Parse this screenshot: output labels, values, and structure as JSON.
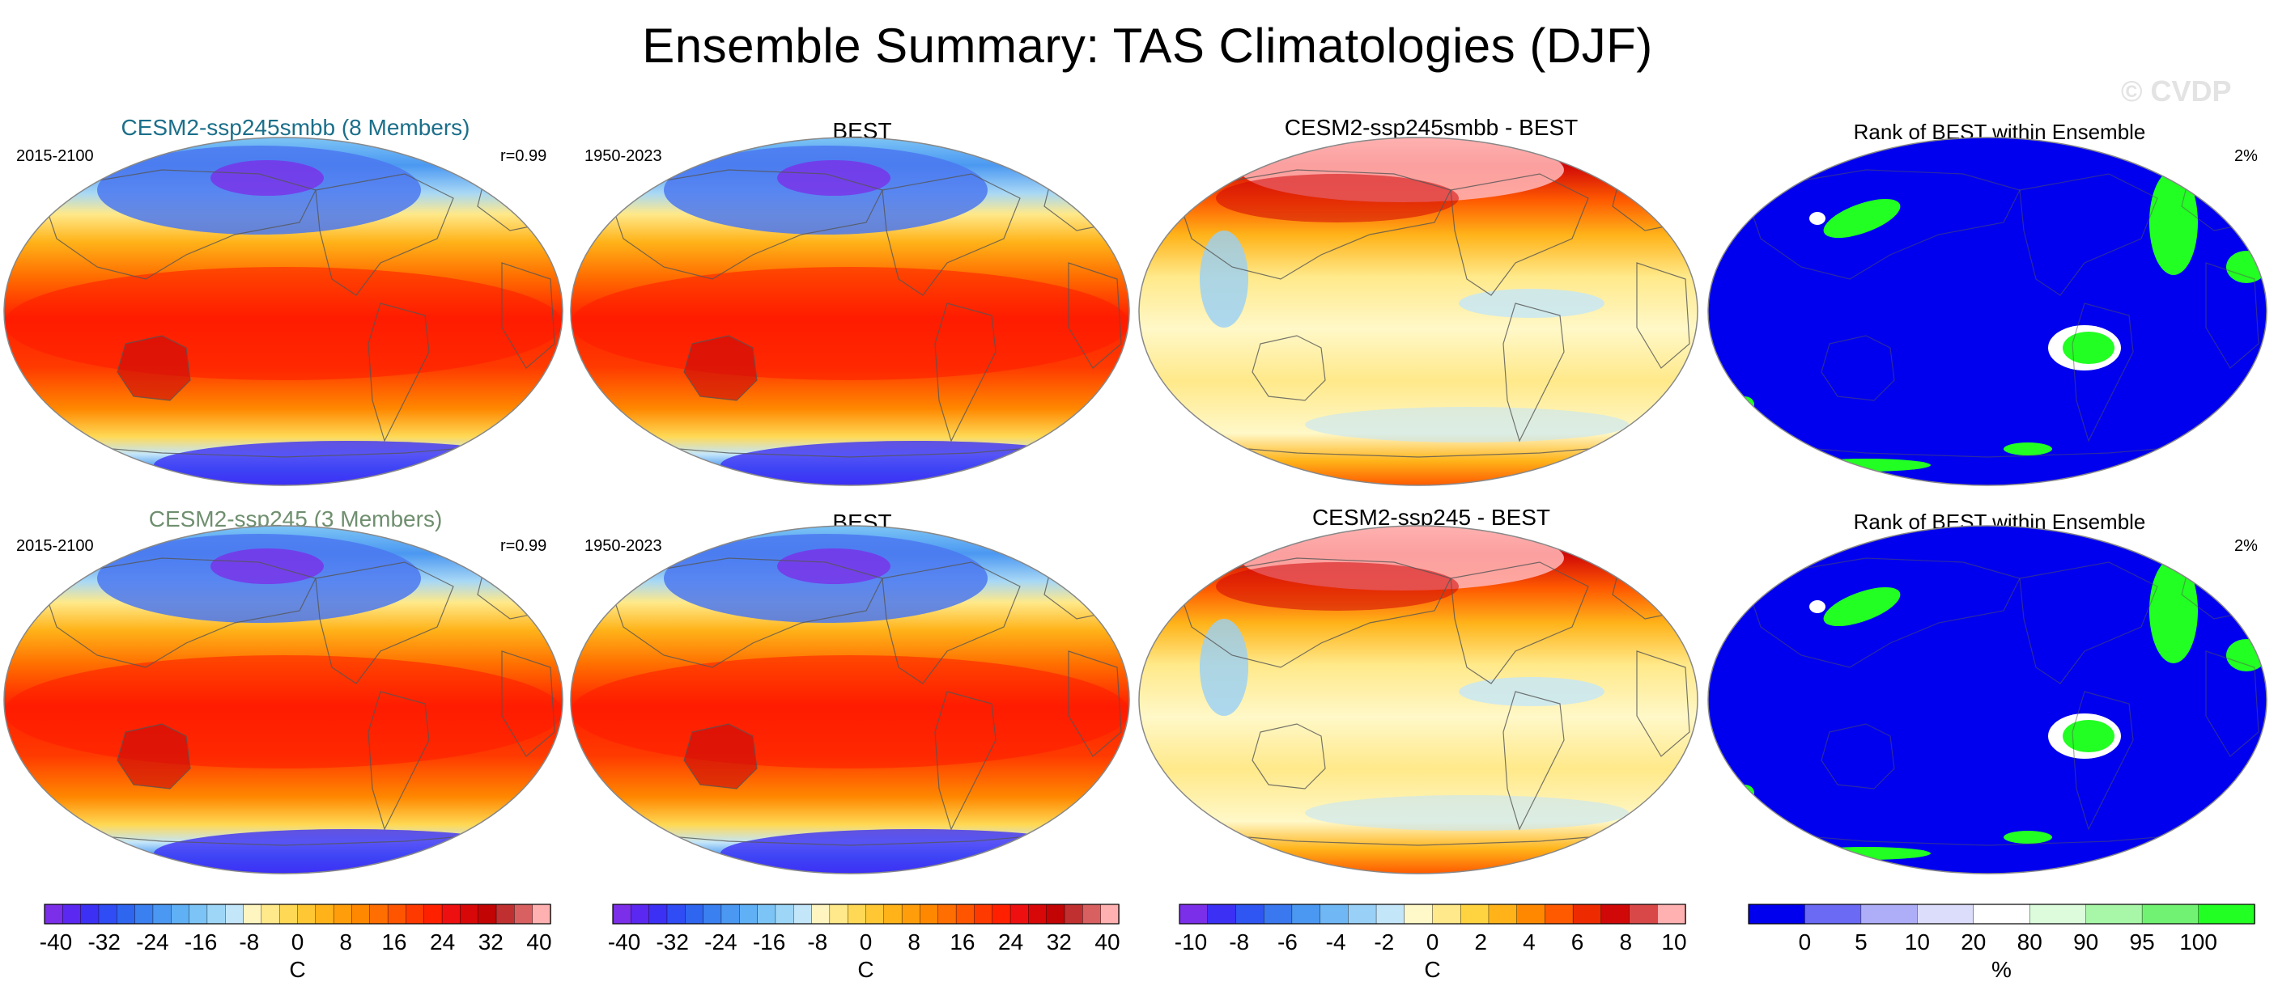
{
  "title": "Ensemble Summary: TAS Climatologies (DJF)",
  "watermark": "© CVDP",
  "colors": {
    "row1_title": "#1b6f8a",
    "row2_title": "#6f8f6f",
    "rank_ocean": "#0000ee",
    "rank_high": "#22ff22",
    "coast": "#555555"
  },
  "rows": [
    {
      "model_title": "CESM2-ssp245smbb (8 Members)",
      "model_years": "2015-2100",
      "pattern_corr": "r=0.99",
      "obs_title": "BEST",
      "obs_years": "1950-2023",
      "diff_title": "CESM2-ssp245smbb - BEST",
      "rank_title": "Rank of BEST within Ensemble",
      "rank_pct": "2%"
    },
    {
      "model_title": "CESM2-ssp245 (3 Members)",
      "model_years": "2015-2100",
      "pattern_corr": "r=0.99",
      "obs_title": "BEST",
      "obs_years": "1950-2023",
      "diff_title": "CESM2-ssp245 - BEST",
      "rank_title": "Rank of BEST within Ensemble",
      "rank_pct": "2%"
    }
  ],
  "colorbars": [
    {
      "name": "climatology-model",
      "labels": [
        "-40",
        "-32",
        "-24",
        "-16",
        "-8",
        "0",
        "8",
        "16",
        "24",
        "32",
        "40"
      ],
      "units": "C",
      "colors": [
        "#7b2fe8",
        "#5a28f0",
        "#3c30f5",
        "#2f4cf5",
        "#2f66f0",
        "#3a80f0",
        "#4b98f2",
        "#5fb0f5",
        "#7cc4f5",
        "#9ed6f7",
        "#c4e6f9",
        "#fff5c0",
        "#ffe98a",
        "#ffd955",
        "#ffc733",
        "#ffb319",
        "#ff9e0a",
        "#ff8800",
        "#ff6e00",
        "#ff5500",
        "#ff3a00",
        "#ff2000",
        "#ee1010",
        "#d80808",
        "#c20404",
        "#c03030",
        "#d86060",
        "#ffb0b0"
      ]
    },
    {
      "name": "climatology-obs",
      "labels": [
        "-40",
        "-32",
        "-24",
        "-16",
        "-8",
        "0",
        "8",
        "16",
        "24",
        "32",
        "40"
      ],
      "units": "C",
      "colors": [
        "#7b2fe8",
        "#5a28f0",
        "#3c30f5",
        "#2f4cf5",
        "#2f66f0",
        "#3a80f0",
        "#4b98f2",
        "#5fb0f5",
        "#7cc4f5",
        "#9ed6f7",
        "#c4e6f9",
        "#fff5c0",
        "#ffe98a",
        "#ffd955",
        "#ffc733",
        "#ffb319",
        "#ff9e0a",
        "#ff8800",
        "#ff6e00",
        "#ff5500",
        "#ff3a00",
        "#ff2000",
        "#ee1010",
        "#d80808",
        "#c20404",
        "#c03030",
        "#d86060",
        "#ffb0b0"
      ]
    },
    {
      "name": "difference",
      "labels": [
        "-10",
        "-8",
        "-6",
        "-4",
        "-2",
        "0",
        "2",
        "4",
        "6",
        "8",
        "10"
      ],
      "units": "C",
      "colors": [
        "#7b2fe8",
        "#3c30f5",
        "#2f55f2",
        "#3a78f0",
        "#4b98f2",
        "#6fb8f5",
        "#98d0f7",
        "#c4e6f9",
        "#fff8c8",
        "#ffe98a",
        "#ffd440",
        "#ffb319",
        "#ff8800",
        "#ff5a00",
        "#ee2a00",
        "#d00808",
        "#d84848",
        "#ffb0b0"
      ]
    },
    {
      "name": "rank",
      "labels": [
        "0",
        "5",
        "10",
        "20",
        "80",
        "90",
        "95",
        "100"
      ],
      "units": "%",
      "colors": [
        "#0000ee",
        "#6a6af5",
        "#aeaef8",
        "#dcdcfb",
        "#ffffff",
        "#dcfcdc",
        "#a8f7a8",
        "#72f272",
        "#22ff22"
      ]
    }
  ]
}
